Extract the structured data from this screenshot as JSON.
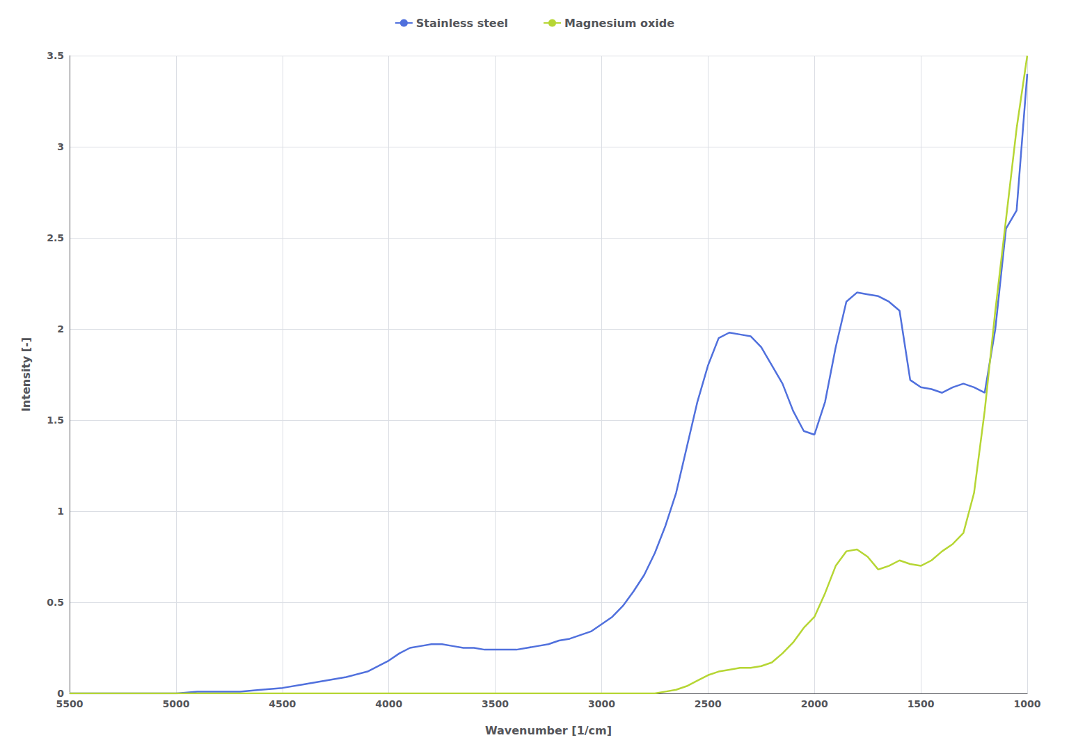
{
  "chart_data": {
    "type": "line",
    "xlabel": "Wavenumber [1/cm]",
    "ylabel": "Intensity [-]",
    "xlim": [
      5500,
      1000
    ],
    "ylim": [
      0,
      3.5
    ],
    "xticks": [
      5500,
      5000,
      4500,
      4000,
      3500,
      3000,
      2500,
      2000,
      1500,
      1000
    ],
    "yticks": [
      0,
      0.5,
      1,
      1.5,
      2,
      2.5,
      3,
      3.5
    ],
    "grid": true,
    "legend": "top",
    "x": [
      5500,
      5400,
      5300,
      5200,
      5100,
      5000,
      4900,
      4800,
      4700,
      4600,
      4500,
      4400,
      4300,
      4200,
      4100,
      4000,
      3950,
      3900,
      3850,
      3800,
      3750,
      3700,
      3650,
      3600,
      3550,
      3500,
      3450,
      3400,
      3350,
      3300,
      3250,
      3200,
      3150,
      3100,
      3050,
      3000,
      2950,
      2900,
      2850,
      2800,
      2750,
      2700,
      2650,
      2600,
      2550,
      2500,
      2450,
      2400,
      2350,
      2300,
      2250,
      2200,
      2150,
      2100,
      2050,
      2000,
      1950,
      1900,
      1850,
      1800,
      1750,
      1700,
      1650,
      1600,
      1550,
      1500,
      1450,
      1400,
      1350,
      1300,
      1250,
      1200,
      1150,
      1100,
      1050,
      1000
    ],
    "series": [
      {
        "name": "Stainless steel",
        "values": [
          0.0,
          0.0,
          0.0,
          0.0,
          0.0,
          0.0,
          0.01,
          0.01,
          0.01,
          0.02,
          0.03,
          0.05,
          0.07,
          0.09,
          0.12,
          0.18,
          0.22,
          0.25,
          0.26,
          0.27,
          0.27,
          0.26,
          0.25,
          0.25,
          0.24,
          0.24,
          0.24,
          0.24,
          0.25,
          0.26,
          0.27,
          0.29,
          0.3,
          0.32,
          0.34,
          0.38,
          0.42,
          0.48,
          0.56,
          0.65,
          0.77,
          0.92,
          1.1,
          1.35,
          1.6,
          1.8,
          1.95,
          1.98,
          1.97,
          1.96,
          1.9,
          1.8,
          1.7,
          1.55,
          1.44,
          1.42,
          1.6,
          1.9,
          2.15,
          2.2,
          2.19,
          2.18,
          2.15,
          2.1,
          1.72,
          1.68,
          1.67,
          1.65,
          1.68,
          1.7,
          1.68,
          1.65,
          2.0,
          2.55,
          2.65,
          3.4
        ]
      },
      {
        "name": "Magnesium oxide",
        "values": [
          0.0,
          0.0,
          0.0,
          0.0,
          0.0,
          0.0,
          0.0,
          0.0,
          0.0,
          0.0,
          0.0,
          0.0,
          0.0,
          0.0,
          0.0,
          0.0,
          0.0,
          0.0,
          0.0,
          0.0,
          0.0,
          0.0,
          0.0,
          0.0,
          0.0,
          0.0,
          0.0,
          0.0,
          0.0,
          0.0,
          0.0,
          0.0,
          0.0,
          0.0,
          0.0,
          0.0,
          0.0,
          0.0,
          0.0,
          0.0,
          0.0,
          0.01,
          0.02,
          0.04,
          0.07,
          0.1,
          0.12,
          0.13,
          0.14,
          0.14,
          0.15,
          0.17,
          0.22,
          0.28,
          0.36,
          0.42,
          0.55,
          0.7,
          0.78,
          0.79,
          0.75,
          0.68,
          0.7,
          0.73,
          0.71,
          0.7,
          0.73,
          0.78,
          0.82,
          0.88,
          1.1,
          1.55,
          2.1,
          2.6,
          3.1,
          3.5
        ]
      }
    ]
  }
}
